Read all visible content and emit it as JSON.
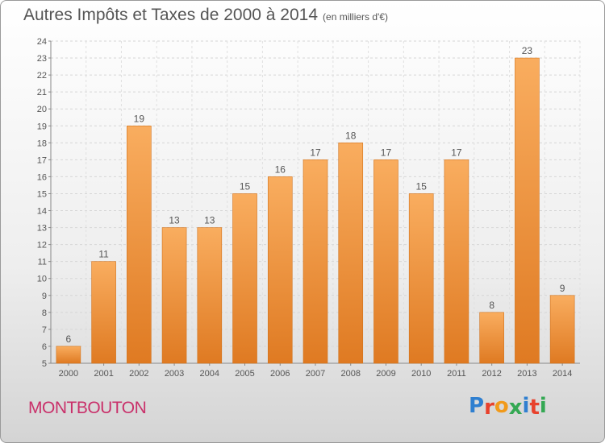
{
  "title": "Autres Impôts et Taxes de 2000 à 2014",
  "unit": "(en milliers d'€)",
  "commune": "MONTBOUTON",
  "logo_text": "Proxiti",
  "colors": {
    "bar_light": "#f7a95c",
    "bar_dark": "#e07d24",
    "commune": "#c9306a"
  },
  "chart_data": {
    "type": "bar",
    "title": "Autres Impôts et Taxes de 2000 à 2014",
    "subtitle": "(en milliers d'€)",
    "categories": [
      "2000",
      "2001",
      "2002",
      "2003",
      "2004",
      "2005",
      "2006",
      "2007",
      "2008",
      "2009",
      "2010",
      "2011",
      "2012",
      "2013",
      "2014"
    ],
    "values": [
      6,
      11,
      19,
      13,
      13,
      15,
      16,
      17,
      18,
      17,
      15,
      17,
      8,
      23,
      9
    ],
    "ylim": [
      5,
      24
    ],
    "yticks": [
      5,
      6,
      7,
      8,
      9,
      10,
      11,
      12,
      13,
      14,
      15,
      16,
      17,
      18,
      19,
      20,
      21,
      22,
      23,
      24
    ],
    "grid": true,
    "data_labels": true
  }
}
